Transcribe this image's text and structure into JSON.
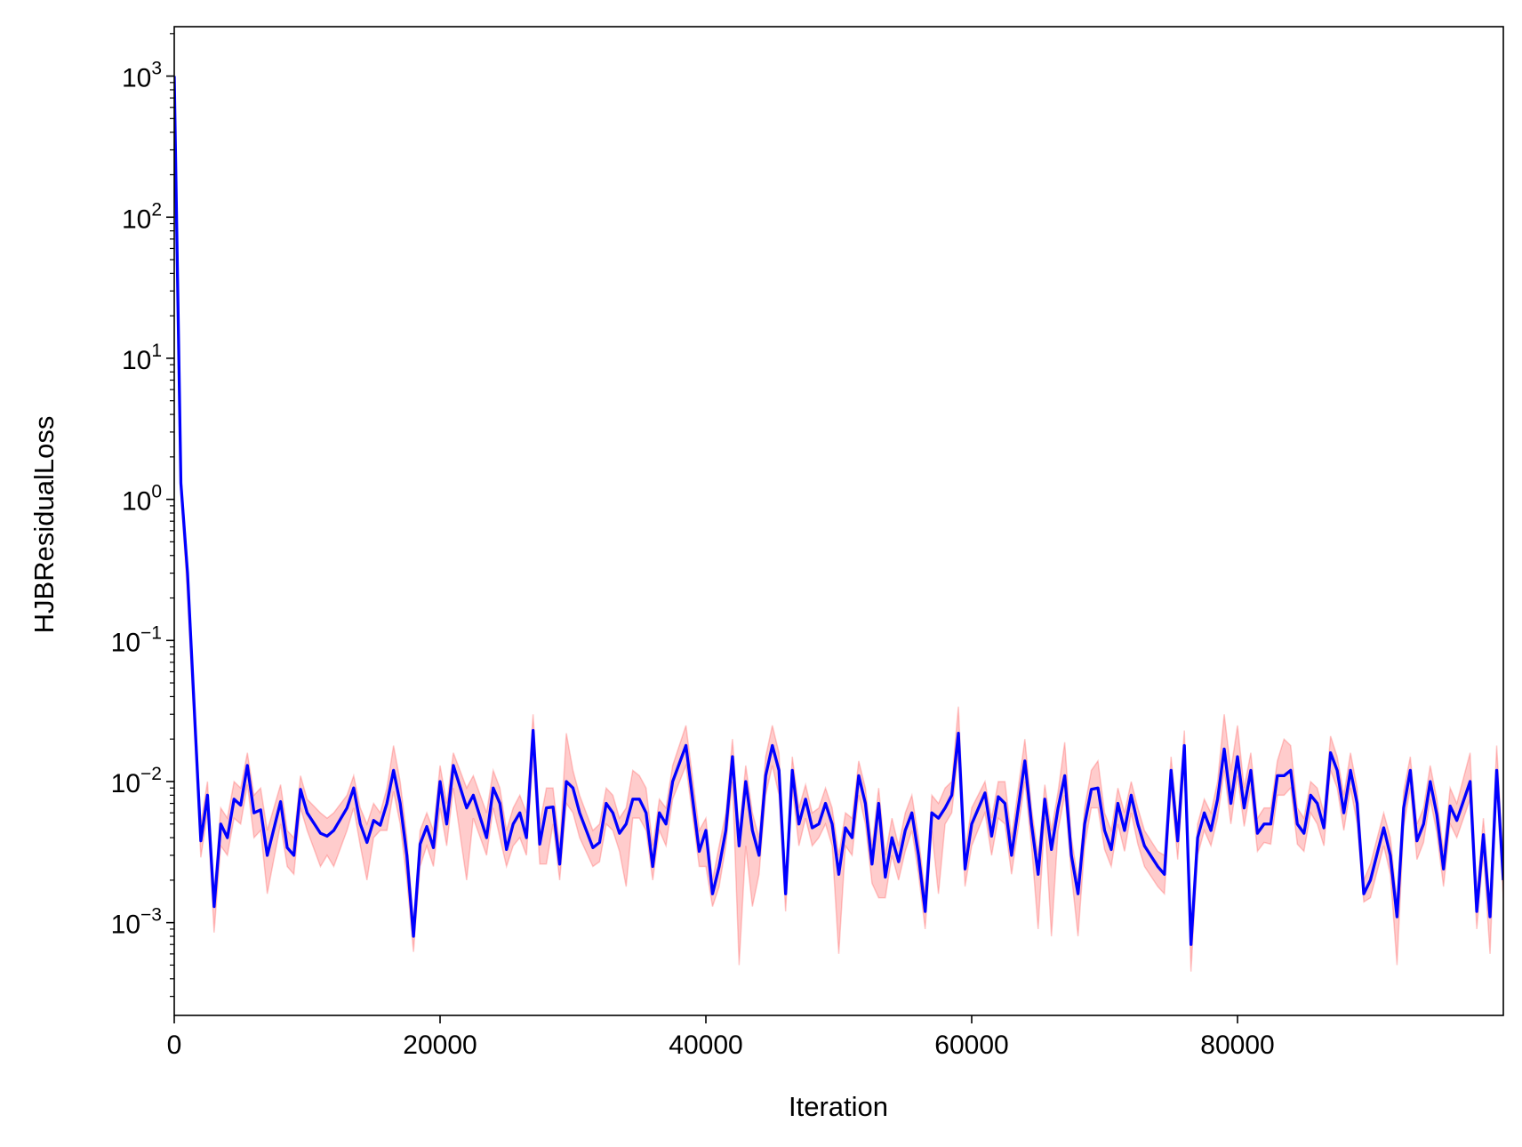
{
  "chart_data": {
    "type": "line",
    "x_label": "Iteration",
    "y_label": "HJBResidualLoss",
    "log_y": true,
    "grid": false,
    "color": "#0000ff",
    "band_color": "#ff0000",
    "xlim": [
      0,
      100000
    ],
    "ylim": [
      0.00022,
      2240
    ],
    "xticks": [
      0,
      20000,
      40000,
      60000,
      80000
    ],
    "yticks": [
      {
        "value": 0.001,
        "label": "10^−3"
      },
      {
        "value": 0.01,
        "label": "10^−2"
      },
      {
        "value": 0.1,
        "label": "10^−1"
      },
      {
        "value": 1,
        "label": "10^0"
      },
      {
        "value": 10,
        "label": "10^1"
      },
      {
        "value": 100,
        "label": "10^2"
      },
      {
        "value": 1000,
        "label": "10^3"
      }
    ],
    "x": [
      0,
      500,
      1000,
      2000,
      2500,
      3000,
      3500,
      4000,
      4500,
      5000,
      5500,
      6000,
      6500,
      7000,
      8000,
      8500,
      9000,
      9500,
      10000,
      11000,
      11500,
      12000,
      13000,
      13500,
      14000,
      14500,
      15000,
      15500,
      16000,
      16500,
      17000,
      17500,
      18000,
      18500,
      19000,
      19500,
      20000,
      20500,
      21000,
      22000,
      22500,
      23500,
      24000,
      24500,
      25000,
      25500,
      26000,
      26500,
      27000,
      27500,
      28000,
      28500,
      29000,
      29500,
      30000,
      30500,
      31500,
      32000,
      32500,
      33000,
      33500,
      34000,
      34500,
      35000,
      35500,
      36000,
      36500,
      37000,
      37500,
      38500,
      39500,
      40000,
      40500,
      41000,
      41500,
      42000,
      42500,
      43000,
      43500,
      44000,
      44500,
      45000,
      45500,
      46000,
      46500,
      47000,
      47500,
      48000,
      48500,
      49000,
      49500,
      50000,
      50500,
      51000,
      51500,
      52000,
      52500,
      53000,
      53500,
      54000,
      54500,
      55000,
      55500,
      56000,
      56500,
      57000,
      57500,
      58000,
      58500,
      59000,
      59500,
      60000,
      61000,
      61500,
      62000,
      62500,
      63000,
      64000,
      64500,
      65000,
      65500,
      66000,
      66500,
      67000,
      67500,
      68000,
      68500,
      69000,
      69500,
      70000,
      70500,
      71000,
      71500,
      72000,
      72500,
      73000,
      74000,
      74500,
      75000,
      75500,
      76000,
      76500,
      77000,
      77500,
      78000,
      78500,
      79000,
      79500,
      80000,
      80500,
      81000,
      81500,
      82000,
      82500,
      83000,
      83500,
      84000,
      84500,
      85000,
      85500,
      86000,
      86500,
      87000,
      87500,
      88000,
      88500,
      89000,
      89500,
      90000,
      91000,
      91500,
      92000,
      92500,
      93000,
      93500,
      94000,
      94500,
      95000,
      95500,
      96000,
      96500,
      97500,
      98000,
      98500,
      99000,
      99500,
      100000
    ],
    "values": [
      1000,
      1.3,
      0.3,
      0.0038,
      0.008,
      0.0013,
      0.005,
      0.004,
      0.0075,
      0.0068,
      0.013,
      0.006,
      0.0063,
      0.003,
      0.0072,
      0.0034,
      0.003,
      0.0088,
      0.006,
      0.0043,
      0.0041,
      0.0045,
      0.0065,
      0.009,
      0.005,
      0.0037,
      0.0053,
      0.0049,
      0.007,
      0.012,
      0.007,
      0.003,
      0.0008,
      0.0036,
      0.0048,
      0.0034,
      0.01,
      0.005,
      0.013,
      0.0065,
      0.008,
      0.004,
      0.009,
      0.007,
      0.0033,
      0.005,
      0.006,
      0.004,
      0.023,
      0.0036,
      0.0065,
      0.0066,
      0.0026,
      0.01,
      0.009,
      0.006,
      0.0034,
      0.0037,
      0.007,
      0.006,
      0.0043,
      0.005,
      0.0075,
      0.0075,
      0.006,
      0.0025,
      0.006,
      0.005,
      0.01,
      0.018,
      0.0032,
      0.0045,
      0.0016,
      0.0025,
      0.0045,
      0.015,
      0.0035,
      0.01,
      0.0045,
      0.003,
      0.011,
      0.018,
      0.012,
      0.0016,
      0.012,
      0.005,
      0.0075,
      0.0047,
      0.005,
      0.007,
      0.005,
      0.0022,
      0.0047,
      0.004,
      0.011,
      0.007,
      0.0026,
      0.007,
      0.0021,
      0.004,
      0.0027,
      0.0045,
      0.006,
      0.003,
      0.0012,
      0.006,
      0.0055,
      0.0065,
      0.008,
      0.022,
      0.0024,
      0.005,
      0.0083,
      0.0041,
      0.0078,
      0.007,
      0.003,
      0.014,
      0.005,
      0.0022,
      0.0075,
      0.0033,
      0.0065,
      0.011,
      0.003,
      0.0016,
      0.005,
      0.0088,
      0.009,
      0.0045,
      0.0033,
      0.007,
      0.0045,
      0.008,
      0.005,
      0.0035,
      0.0025,
      0.0022,
      0.012,
      0.0038,
      0.018,
      0.0007,
      0.004,
      0.006,
      0.0045,
      0.0075,
      0.017,
      0.007,
      0.015,
      0.0065,
      0.012,
      0.0043,
      0.005,
      0.005,
      0.011,
      0.011,
      0.012,
      0.005,
      0.0043,
      0.008,
      0.007,
      0.0047,
      0.016,
      0.012,
      0.006,
      0.012,
      0.007,
      0.0016,
      0.002,
      0.0047,
      0.003,
      0.0011,
      0.0065,
      0.012,
      0.0038,
      0.005,
      0.01,
      0.0058,
      0.0024,
      0.0067,
      0.0053,
      0.01,
      0.0012,
      0.0042,
      0.0011,
      0.012,
      0.002
    ],
    "band_lower": [
      1000,
      1.1,
      0.2,
      0.0029,
      0.006,
      0.00085,
      0.0035,
      0.003,
      0.0055,
      0.005,
      0.0095,
      0.004,
      0.0045,
      0.0016,
      0.005,
      0.0025,
      0.0022,
      0.0065,
      0.0045,
      0.0025,
      0.003,
      0.0025,
      0.0045,
      0.0065,
      0.0035,
      0.002,
      0.004,
      0.0045,
      0.0045,
      0.0085,
      0.005,
      0.002,
      0.00062,
      0.0025,
      0.0035,
      0.0025,
      0.0065,
      0.0035,
      0.009,
      0.002,
      0.0055,
      0.003,
      0.0065,
      0.004,
      0.0025,
      0.0035,
      0.004,
      0.003,
      0.015,
      0.0026,
      0.0026,
      0.005,
      0.002,
      0.007,
      0.006,
      0.004,
      0.0025,
      0.0027,
      0.005,
      0.0045,
      0.0032,
      0.0018,
      0.0055,
      0.0055,
      0.0045,
      0.002,
      0.0045,
      0.0035,
      0.0075,
      0.013,
      0.0025,
      0.0025,
      0.0013,
      0.0018,
      0.0035,
      0.01,
      0.0005,
      0.0035,
      0.0013,
      0.0022,
      0.008,
      0.013,
      0.008,
      0.0012,
      0.009,
      0.0035,
      0.0055,
      0.0035,
      0.004,
      0.005,
      0.0035,
      0.0006,
      0.0035,
      0.003,
      0.008,
      0.005,
      0.0019,
      0.0015,
      0.0015,
      0.003,
      0.002,
      0.0032,
      0.0045,
      0.0022,
      0.0009,
      0.0045,
      0.0016,
      0.005,
      0.006,
      0.016,
      0.0018,
      0.0035,
      0.006,
      0.003,
      0.0055,
      0.005,
      0.0022,
      0.01,
      0.0035,
      0.0009,
      0.0055,
      0.0008,
      0.0045,
      0.008,
      0.0022,
      0.0008,
      0.0035,
      0.0065,
      0.0065,
      0.0033,
      0.0025,
      0.005,
      0.0032,
      0.006,
      0.0036,
      0.0025,
      0.0018,
      0.0016,
      0.009,
      0.0028,
      0.013,
      0.00045,
      0.003,
      0.0045,
      0.0035,
      0.0055,
      0.012,
      0.005,
      0.011,
      0.0048,
      0.009,
      0.0032,
      0.0037,
      0.0036,
      0.008,
      0.008,
      0.009,
      0.0036,
      0.0032,
      0.006,
      0.005,
      0.0035,
      0.012,
      0.009,
      0.0045,
      0.009,
      0.005,
      0.0014,
      0.0015,
      0.0035,
      0.0022,
      0.0005,
      0.0048,
      0.009,
      0.0028,
      0.0037,
      0.0075,
      0.0043,
      0.0018,
      0.005,
      0.004,
      0.0075,
      0.0009,
      0.0031,
      0.0006,
      0.009,
      0.0015
    ],
    "band_upper": [
      1000,
      1.5,
      0.35,
      0.005,
      0.01,
      0.0016,
      0.0065,
      0.0055,
      0.01,
      0.009,
      0.016,
      0.008,
      0.009,
      0.0045,
      0.0095,
      0.0045,
      0.004,
      0.011,
      0.0075,
      0.006,
      0.0055,
      0.006,
      0.008,
      0.011,
      0.0065,
      0.005,
      0.007,
      0.006,
      0.009,
      0.018,
      0.01,
      0.004,
      0.001,
      0.0045,
      0.006,
      0.0045,
      0.013,
      0.007,
      0.016,
      0.009,
      0.011,
      0.006,
      0.012,
      0.009,
      0.0045,
      0.0065,
      0.008,
      0.006,
      0.03,
      0.005,
      0.009,
      0.009,
      0.0035,
      0.022,
      0.012,
      0.008,
      0.0045,
      0.005,
      0.009,
      0.008,
      0.0055,
      0.0065,
      0.012,
      0.011,
      0.009,
      0.0035,
      0.0075,
      0.0065,
      0.013,
      0.025,
      0.0045,
      0.0055,
      0.002,
      0.0035,
      0.006,
      0.02,
      0.0045,
      0.013,
      0.006,
      0.004,
      0.015,
      0.025,
      0.016,
      0.002,
      0.015,
      0.0065,
      0.0095,
      0.006,
      0.0065,
      0.009,
      0.0065,
      0.003,
      0.006,
      0.0055,
      0.014,
      0.009,
      0.0035,
      0.009,
      0.003,
      0.0055,
      0.0035,
      0.006,
      0.008,
      0.004,
      0.0016,
      0.008,
      0.007,
      0.009,
      0.01,
      0.034,
      0.0032,
      0.0065,
      0.01,
      0.0055,
      0.01,
      0.01,
      0.004,
      0.02,
      0.0065,
      0.003,
      0.0095,
      0.0045,
      0.0085,
      0.019,
      0.004,
      0.002,
      0.0065,
      0.012,
      0.014,
      0.006,
      0.0045,
      0.009,
      0.006,
      0.01,
      0.0065,
      0.0045,
      0.0032,
      0.003,
      0.015,
      0.005,
      0.023,
      0.0009,
      0.005,
      0.0075,
      0.006,
      0.01,
      0.03,
      0.012,
      0.025,
      0.009,
      0.016,
      0.0055,
      0.0065,
      0.0065,
      0.014,
      0.02,
      0.018,
      0.0065,
      0.0055,
      0.01,
      0.009,
      0.006,
      0.021,
      0.015,
      0.008,
      0.016,
      0.009,
      0.002,
      0.0026,
      0.006,
      0.004,
      0.0014,
      0.0085,
      0.015,
      0.005,
      0.0065,
      0.013,
      0.0075,
      0.0032,
      0.009,
      0.007,
      0.016,
      0.0016,
      0.0055,
      0.0014,
      0.018,
      0.0026
    ]
  }
}
